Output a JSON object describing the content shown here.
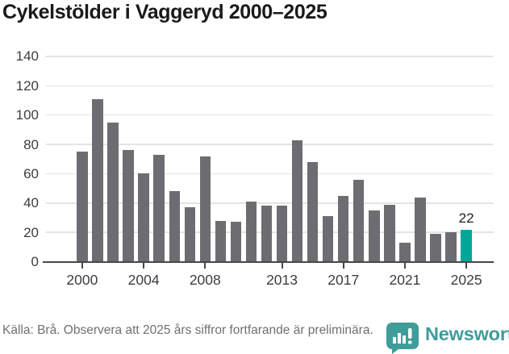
{
  "title": "Cykelstölder i Vaggeryd 2000–2025",
  "chart_data": {
    "type": "bar",
    "x": [
      2000,
      2001,
      2002,
      2003,
      2004,
      2005,
      2006,
      2007,
      2008,
      2009,
      2010,
      2011,
      2012,
      2013,
      2014,
      2015,
      2016,
      2017,
      2018,
      2019,
      2020,
      2021,
      2022,
      2023,
      2024,
      2025
    ],
    "values": [
      75,
      111,
      95,
      76,
      60,
      73,
      48,
      37,
      72,
      28,
      27,
      41,
      38,
      38,
      83,
      68,
      31,
      45,
      56,
      35,
      39,
      13,
      44,
      19,
      20,
      22
    ],
    "title": "Cykelstölder i Vaggeryd 2000–2025",
    "xlabel": "",
    "ylabel": "",
    "ylim": [
      0,
      140
    ],
    "y_ticks": [
      0,
      20,
      40,
      60,
      80,
      100,
      120,
      140
    ],
    "x_tick_years": [
      2000,
      2004,
      2008,
      2013,
      2017,
      2021,
      2025
    ],
    "x_tick_labels": [
      "2000",
      "2004",
      "2008",
      "2013",
      "2017",
      "2021",
      "2025"
    ],
    "grid": true,
    "legend": "none",
    "annotation": {
      "year": 2025,
      "text": "22"
    },
    "colors": {
      "bar": "#6d6d71",
      "highlight_bar": "#00a79b",
      "gridline": "#e4e4e4",
      "axis": "#474747",
      "tick_label": "#3d3d3d"
    },
    "highlight_year": 2025
  },
  "footer": {
    "source_note": "Källa: Brå. Observera att 2025 års siffror fortfarande är preliminära."
  },
  "branding": {
    "logo_text": "Newsworthy",
    "logo_color": "#3f9d99",
    "logo_icon": "speech-bubble-bar-chart-icon"
  }
}
